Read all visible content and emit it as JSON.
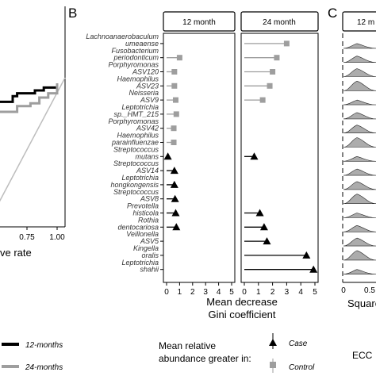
{
  "panel_labels": [
    "B",
    "C"
  ],
  "chart_data": [
    {
      "type": "line",
      "panel": "A (partial)",
      "x_tick_labels": [
        "0.75",
        "1.00"
      ],
      "xlabel_fragment": "ve rate",
      "series": [
        {
          "name": "12-months",
          "color": "#000000",
          "x": [
            0.0,
            0.05,
            0.12,
            0.2,
            0.3,
            0.42,
            0.5,
            0.55,
            0.62,
            0.75,
            0.8,
            0.85,
            0.92,
            1.0
          ],
          "y": [
            0.82,
            0.82,
            0.84,
            0.84,
            0.87,
            0.87,
            0.91,
            0.93,
            0.93,
            0.95,
            0.95,
            0.97,
            0.97,
            1.0
          ]
        },
        {
          "name": "24-months",
          "color": "#9e9e9e",
          "x": [
            0.0,
            0.1,
            0.3,
            0.45,
            0.55,
            0.7,
            0.8,
            0.9,
            1.0
          ],
          "y": [
            0.78,
            0.78,
            0.8,
            0.8,
            0.84,
            0.86,
            0.9,
            0.93,
            1.0
          ]
        }
      ],
      "reference_line": "diagonal",
      "legend": [
        {
          "label": "12-months",
          "color": "#000000"
        },
        {
          "label": "24-months",
          "color": "#9e9e9e"
        }
      ]
    },
    {
      "type": "scatter",
      "panel": "B",
      "facets": [
        "12 month",
        "24 month"
      ],
      "xlabel": [
        "Mean decrease",
        "Gini coefficient"
      ],
      "x_ticks": [
        0,
        1,
        2,
        3,
        4,
        5
      ],
      "xlim": [
        0,
        5
      ],
      "taxa": [
        "Lachnoanaerobaculum",
        "umeaense",
        "Fusobacterium",
        "periodonticum",
        "Porphyromonas",
        "ASV120",
        "Haemophilus",
        "ASV23",
        "Neisseria",
        "ASV9",
        "Leptotrichia",
        "sp._HMT_215",
        "Porphyromonas",
        "ASV42",
        "Haemophilus",
        "parainfluenzae",
        "Streptococcus",
        "mutans",
        "Streptococcus",
        "ASV14",
        "Leptotrichia",
        "hongkongensis",
        "Streptococcus",
        "ASV8",
        "Prevotella",
        "histicola",
        "Rothia",
        "dentocariosa",
        "Veillonella",
        "ASV5",
        "Kingella",
        "oralis",
        "Leptotrichia",
        "shahii"
      ],
      "points_12_month": [
        {
          "row": 0,
          "value": null
        },
        {
          "row": 1,
          "value": 1.0,
          "group": "Control"
        },
        {
          "row": 2,
          "value": 0.6,
          "group": "Control"
        },
        {
          "row": 3,
          "value": 0.6,
          "group": "Control"
        },
        {
          "row": 4,
          "value": 0.7,
          "group": "Control"
        },
        {
          "row": 5,
          "value": 0.75,
          "group": "Control"
        },
        {
          "row": 6,
          "value": 0.55,
          "group": "Control"
        },
        {
          "row": 7,
          "value": 0.55,
          "group": "Control"
        },
        {
          "row": 8,
          "value": 0.1,
          "group": "Case"
        },
        {
          "row": 9,
          "value": 0.6,
          "group": "Case"
        },
        {
          "row": 10,
          "value": 0.6,
          "group": "Case"
        },
        {
          "row": 11,
          "value": 0.65,
          "group": "Case"
        },
        {
          "row": 12,
          "value": 0.7,
          "group": "Case"
        },
        {
          "row": 13,
          "value": 0.75,
          "group": "Case"
        },
        {
          "row": 14,
          "value": null
        },
        {
          "row": 15,
          "value": null
        },
        {
          "row": 16,
          "value": null
        }
      ],
      "points_24_month": [
        {
          "row": 0,
          "value": 3.0,
          "group": "Control"
        },
        {
          "row": 1,
          "value": 2.3,
          "group": "Control"
        },
        {
          "row": 2,
          "value": 2.0,
          "group": "Control"
        },
        {
          "row": 3,
          "value": 1.8,
          "group": "Control"
        },
        {
          "row": 4,
          "value": 1.3,
          "group": "Control"
        },
        {
          "row": 5,
          "value": null
        },
        {
          "row": 6,
          "value": null
        },
        {
          "row": 7,
          "value": null
        },
        {
          "row": 8,
          "value": 0.7,
          "group": "Case"
        },
        {
          "row": 9,
          "value": null
        },
        {
          "row": 10,
          "value": null
        },
        {
          "row": 11,
          "value": null
        },
        {
          "row": 12,
          "value": 1.1,
          "group": "Case"
        },
        {
          "row": 13,
          "value": 1.4,
          "group": "Case"
        },
        {
          "row": 14,
          "value": 1.6,
          "group": "Case"
        },
        {
          "row": 15,
          "value": 4.4,
          "group": "Case"
        },
        {
          "row": 16,
          "value": 4.9,
          "group": "Case"
        }
      ],
      "legend": {
        "title": [
          "Mean relative",
          "abundance greater in:"
        ],
        "entries": [
          {
            "label": "Case",
            "shape": "triangle",
            "color": "#000000"
          },
          {
            "label": "Control",
            "shape": "square",
            "color": "#9e9e9e"
          }
        ]
      }
    },
    {
      "type": "area",
      "panel": "C (partial)",
      "facet_fragment": "12 m",
      "xlabel_fragment": "Square",
      "x_tick_labels": [
        "0",
        "0.5"
      ],
      "legend_fragment": "ECC"
    }
  ]
}
